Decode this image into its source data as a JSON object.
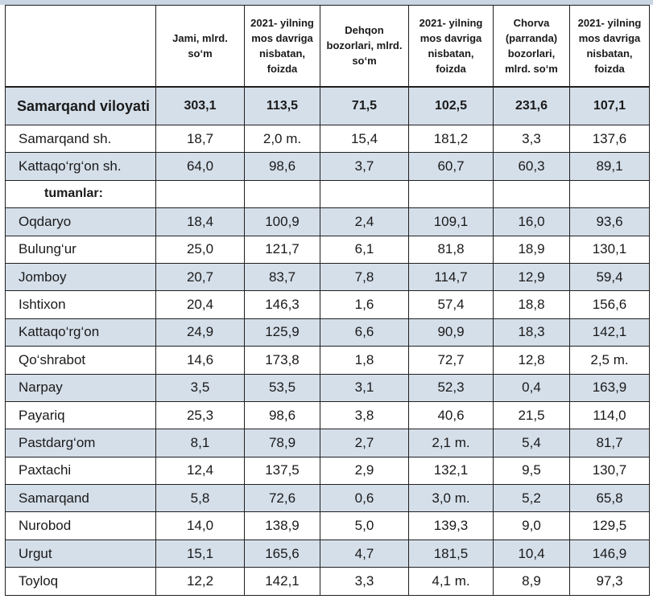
{
  "header": {
    "col0": "",
    "col1": "Jami, mlrd. so‘m",
    "col2": "2021- yilning mos davriga nisbatan, foizda",
    "col3": "Dehqon bozorlari, mlrd. so‘m",
    "col4": "2021- yilning mos davriga nisbatan, foizda",
    "col5": "Chorva (parranda) bozorlari, mlrd. so‘m",
    "col6": "2021- yilning mos davriga nisbatan, foizda"
  },
  "region": {
    "name": "Samarqand viloyati",
    "values": [
      "303,1",
      "113,5",
      "71,5",
      "102,5",
      "231,6",
      "107,1"
    ]
  },
  "cities": [
    {
      "name": "Samarqand sh.",
      "values": [
        "18,7",
        "2,0 m.",
        "15,4",
        "181,2",
        "3,3",
        "137,6"
      ]
    },
    {
      "name": "Kattaqo‘rg‘on  sh.",
      "values": [
        "64,0",
        "98,6",
        "3,7",
        "60,7",
        "60,3",
        "89,1"
      ]
    }
  ],
  "subhead": "tumanlar:",
  "districts": [
    {
      "name": "Oqdaryo",
      "values": [
        "18,4",
        "100,9",
        "2,4",
        "109,1",
        "16,0",
        "93,6"
      ]
    },
    {
      "name": "Bulung‘ur",
      "values": [
        "25,0",
        "121,7",
        "6,1",
        "81,8",
        "18,9",
        "130,1"
      ]
    },
    {
      "name": "Jomboy",
      "values": [
        "20,7",
        "83,7",
        "7,8",
        "114,7",
        "12,9",
        "59,4"
      ]
    },
    {
      "name": "Ishtixon",
      "values": [
        "20,4",
        "146,3",
        "1,6",
        "57,4",
        "18,8",
        "156,6"
      ]
    },
    {
      "name": "Kattaqo‘rg‘on",
      "values": [
        "24,9",
        "125,9",
        "6,6",
        "90,9",
        "18,3",
        "142,1"
      ]
    },
    {
      "name": "Qo‘shrabot",
      "values": [
        "14,6",
        "173,8",
        "1,8",
        "72,7",
        "12,8",
        "2,5 m."
      ]
    },
    {
      "name": "Narpay",
      "values": [
        "3,5",
        "53,5",
        "3,1",
        "52,3",
        "0,4",
        "163,9"
      ]
    },
    {
      "name": "Payariq",
      "values": [
        "25,3",
        "98,6",
        "3,8",
        "40,6",
        "21,5",
        "114,0"
      ]
    },
    {
      "name": "Pastdarg‘om",
      "values": [
        "8,1",
        "78,9",
        "2,7",
        "2,1 m.",
        "5,4",
        "81,7"
      ]
    },
    {
      "name": "Paxtachi",
      "values": [
        "12,4",
        "137,5",
        "2,9",
        "132,1",
        "9,5",
        "130,7"
      ]
    },
    {
      "name": "Samarqand",
      "values": [
        "5,8",
        "72,6",
        "0,6",
        "3,0 m.",
        "5,2",
        "65,8"
      ]
    },
    {
      "name": "Nurobod",
      "values": [
        "14,0",
        "138,9",
        "5,0",
        "139,3",
        "9,0",
        "129,5"
      ]
    },
    {
      "name": "Urgut",
      "values": [
        "15,1",
        "165,6",
        "4,7",
        "181,5",
        "10,4",
        "146,9"
      ]
    },
    {
      "name": "Toyloq",
      "values": [
        "12,2",
        "142,1",
        "3,3",
        "4,1 m.",
        "8,9",
        "97,3"
      ]
    }
  ]
}
